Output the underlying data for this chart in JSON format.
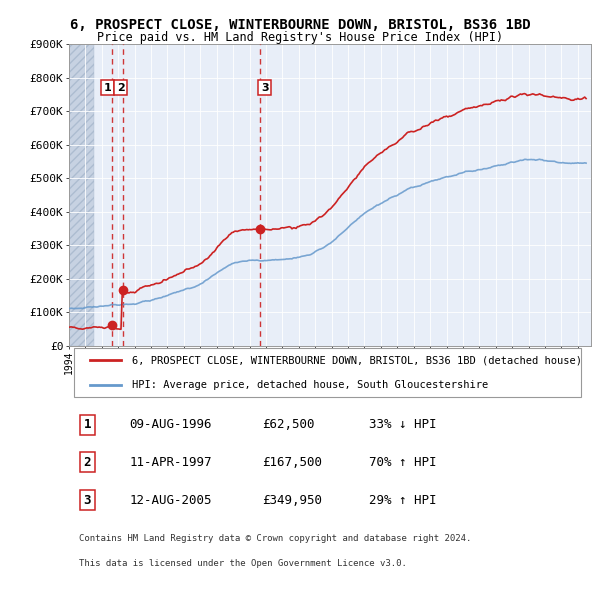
{
  "title": "6, PROSPECT CLOSE, WINTERBOURNE DOWN, BRISTOL, BS36 1BD",
  "subtitle": "Price paid vs. HM Land Registry's House Price Index (HPI)",
  "ylabel_ticks": [
    "£0",
    "£100K",
    "£200K",
    "£300K",
    "£400K",
    "£500K",
    "£600K",
    "£700K",
    "£800K",
    "£900K"
  ],
  "ytick_values": [
    0,
    100000,
    200000,
    300000,
    400000,
    500000,
    600000,
    700000,
    800000,
    900000
  ],
  "xlim": [
    1994.0,
    2025.8
  ],
  "ylim": [
    0,
    900000
  ],
  "hpi_color": "#6699cc",
  "price_color": "#cc2222",
  "dashed_line_color": "#cc2222",
  "background_color": "#e8eef8",
  "grid_color": "#ffffff",
  "legend_label_price": "6, PROSPECT CLOSE, WINTERBOURNE DOWN, BRISTOL, BS36 1BD (detached house)",
  "legend_label_hpi": "HPI: Average price, detached house, South Gloucestershire",
  "sale_dates": [
    1996.6,
    1997.28,
    2005.62
  ],
  "sale_prices": [
    62500,
    167500,
    349950
  ],
  "sale_labels": [
    "1",
    "2",
    "3"
  ],
  "footer_line1": "Contains HM Land Registry data © Crown copyright and database right 2024.",
  "footer_line2": "This data is licensed under the Open Government Licence v3.0.",
  "table_data": [
    [
      "1",
      "09-AUG-1996",
      "£62,500",
      "33% ↓ HPI"
    ],
    [
      "2",
      "11-APR-1997",
      "£167,500",
      "70% ↑ HPI"
    ],
    [
      "3",
      "12-AUG-2005",
      "£349,950",
      "29% ↑ HPI"
    ]
  ]
}
